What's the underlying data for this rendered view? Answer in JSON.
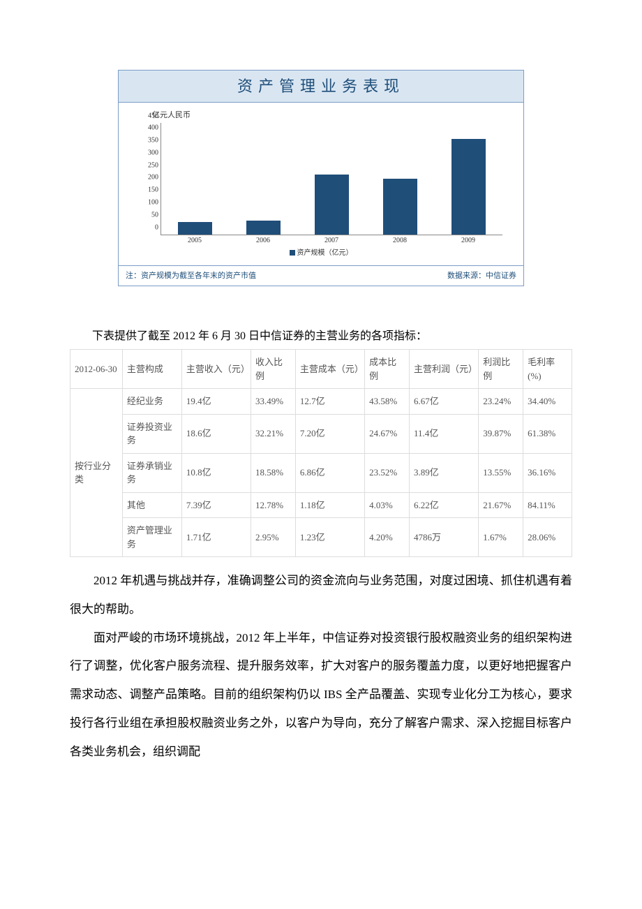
{
  "chart": {
    "title": "资产管理业务表现",
    "ylabel": "亿元人民币",
    "ymax": 450,
    "ytick_step": 50,
    "categories": [
      "2005",
      "2006",
      "2007",
      "2008",
      "2009"
    ],
    "values": [
      50,
      55,
      240,
      225,
      385
    ],
    "bar_color": "#1f4e79",
    "bar_width_pct": 10,
    "footer_left": "注：资产规模为截至各年末的资产市值",
    "footer_right": "数据来源：中信证券",
    "legend_label": "资产规模（亿元）"
  },
  "table_intro": "下表提供了截至 2012 年 6 月 30 日中信证券的主营业务的各项指标：",
  "table": {
    "header": [
      "2012-06-30",
      "主营构成",
      "主营收入（元）",
      "收入比例",
      "主营成本（元）",
      "成本比例",
      "主营利润（元）",
      "利润比例",
      "毛利率(%)"
    ],
    "row_group_label": "按行业分类",
    "rows": [
      [
        "经纪业务",
        "19.4亿",
        "33.49%",
        "12.7亿",
        "43.58%",
        "6.67亿",
        "23.24%",
        "34.40%"
      ],
      [
        "证券投资业务",
        "18.6亿",
        "32.21%",
        "7.20亿",
        "24.67%",
        "11.4亿",
        "39.87%",
        "61.38%"
      ],
      [
        "证券承销业务",
        "10.8亿",
        "18.58%",
        "6.86亿",
        "23.52%",
        "3.89亿",
        "13.55%",
        "36.16%"
      ],
      [
        "其他",
        "7.39亿",
        "12.78%",
        "1.18亿",
        "4.03%",
        "6.22亿",
        "21.67%",
        "84.11%"
      ],
      [
        "资产管理业务",
        "1.71亿",
        "2.95%",
        "1.23亿",
        "4.20%",
        "4786万",
        "1.67%",
        "28.06%"
      ]
    ]
  },
  "paragraphs": [
    "2012 年机遇与挑战并存，准确调整公司的资金流向与业务范围，对度过困境、抓住机遇有着很大的帮助。",
    "面对严峻的市场环境挑战，2012 年上半年，中信证券对投资银行股权融资业务的组织架构进行了调整，优化客户服务流程、提升服务效率，扩大对客户的服务覆盖力度，以更好地把握客户需求动态、调整产品策略。目前的组织架构仍以 IBS 全产品覆盖、实现专业化分工为核心，要求投行各行业组在承担股权融资业务之外，以客户为导向，充分了解客户需求、深入挖掘目标客户各类业务机会，组织调配"
  ]
}
